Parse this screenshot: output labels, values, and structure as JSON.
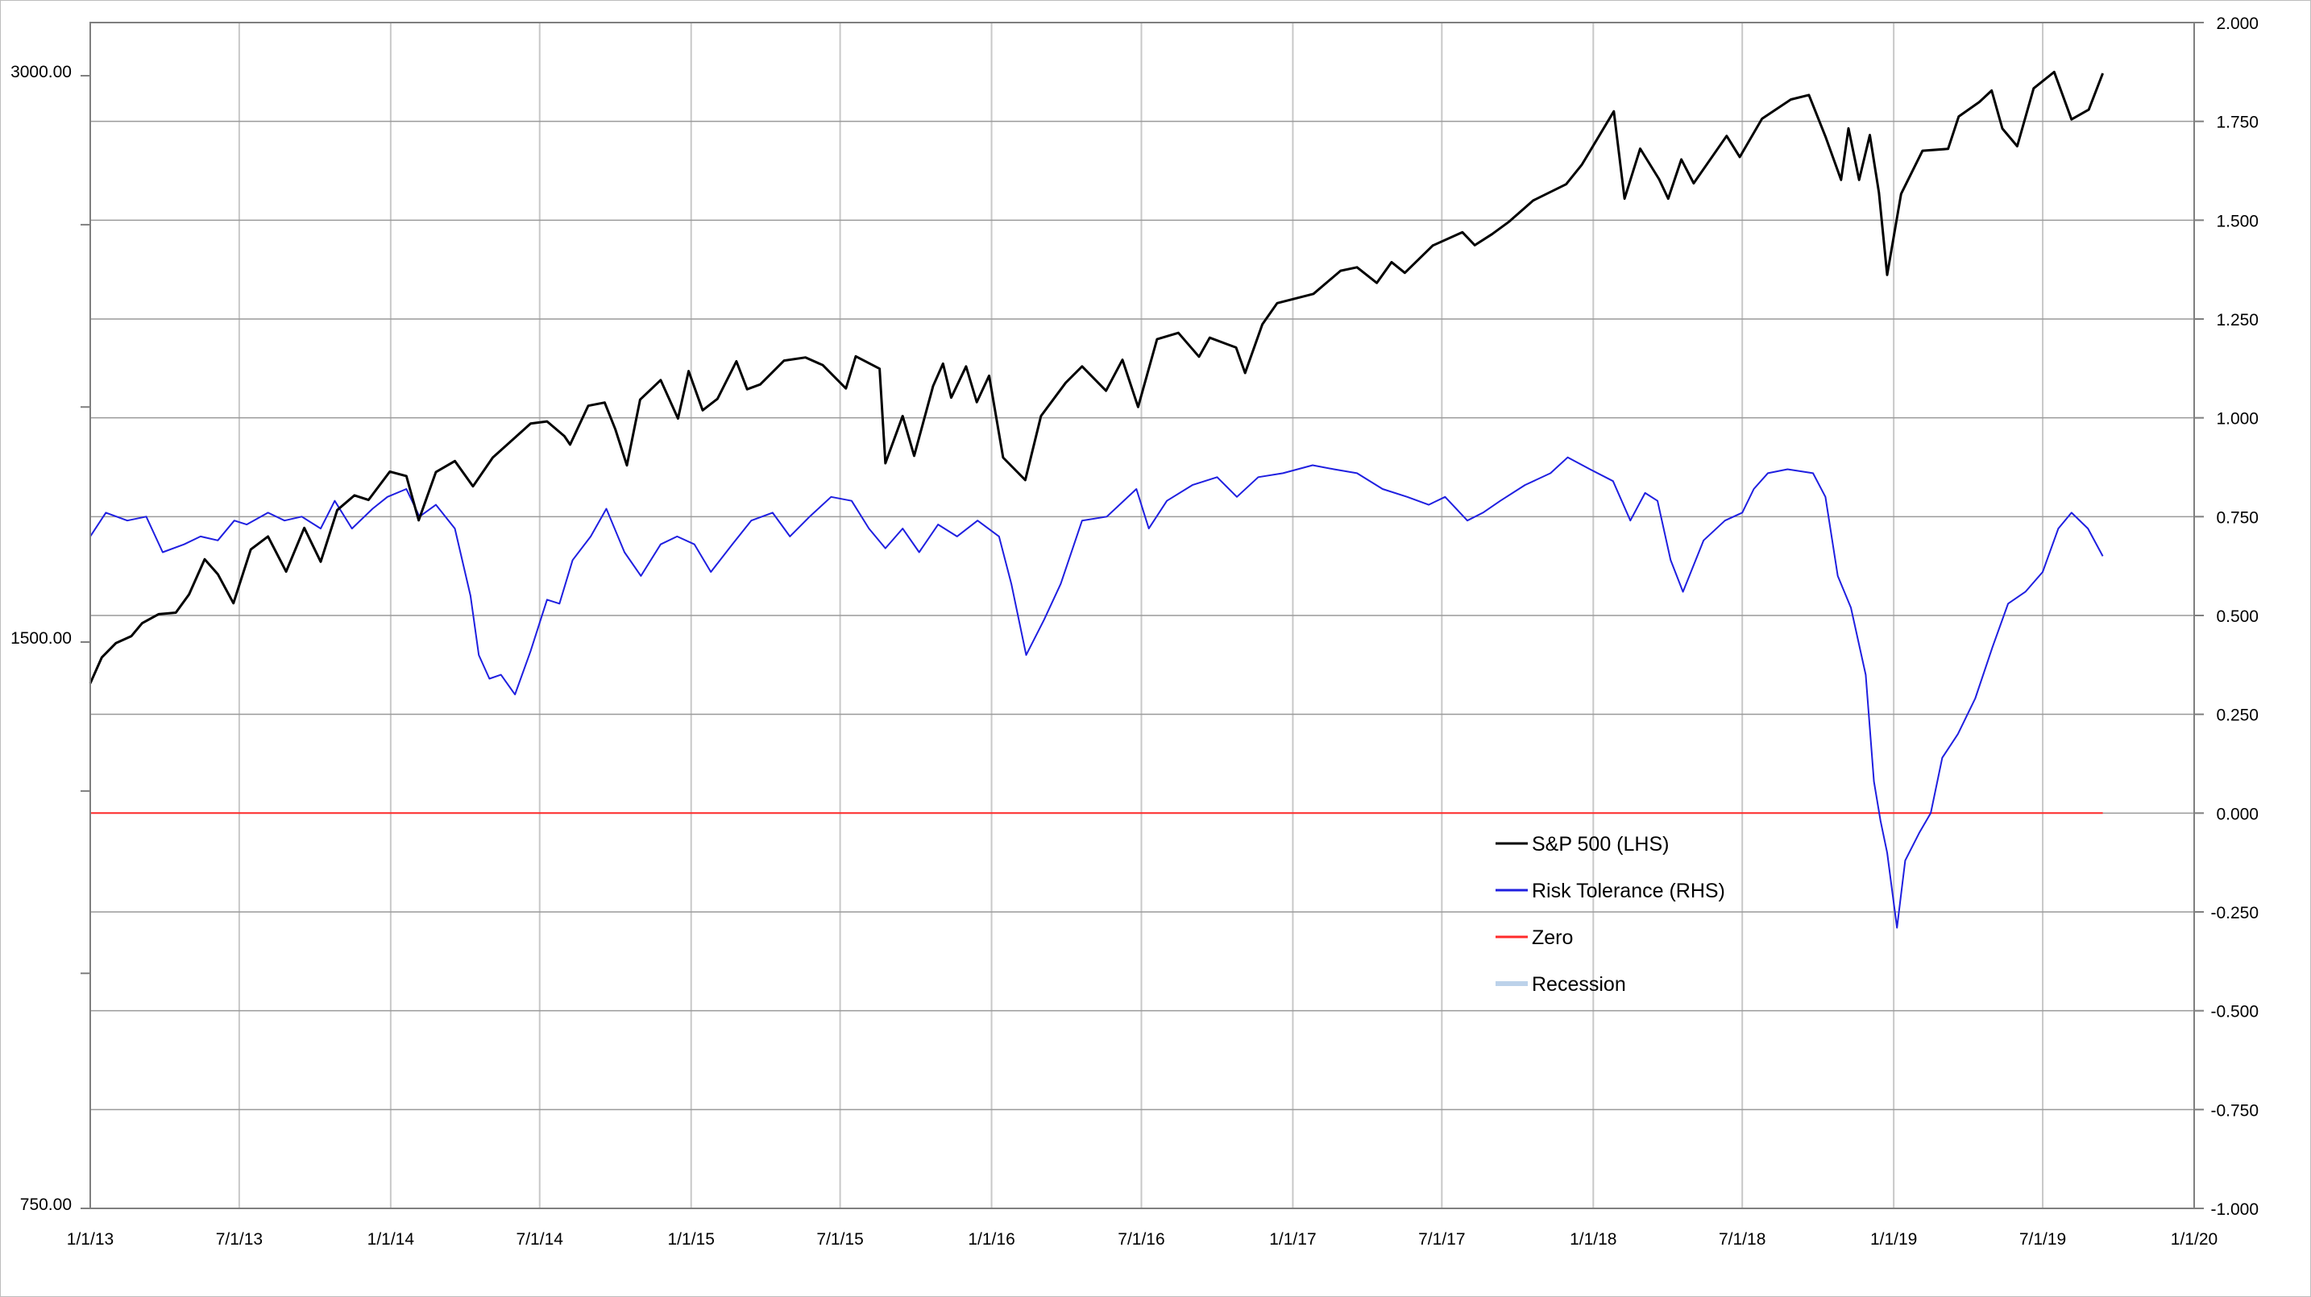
{
  "chart_data": {
    "type": "line",
    "title": "",
    "x_axis": {
      "type": "date",
      "range": [
        "2013-01-01",
        "2020-01-01"
      ],
      "ticks": [
        "2013-01-01",
        "2013-07-01",
        "2014-01-01",
        "2014-07-01",
        "2015-01-01",
        "2015-07-01",
        "2016-01-01",
        "2016-07-01",
        "2017-01-01",
        "2017-07-01",
        "2018-01-01",
        "2018-07-01",
        "2019-01-01",
        "2019-07-01",
        "2020-01-01"
      ],
      "tick_labels": [
        "1/1/13",
        "7/1/13",
        "1/1/14",
        "7/1/14",
        "1/1/15",
        "7/1/15",
        "1/1/16",
        "7/1/16",
        "1/1/17",
        "7/1/17",
        "1/1/18",
        "7/1/18",
        "1/1/19",
        "7/1/19",
        "1/1/20"
      ]
    },
    "y_left": {
      "scale": "log",
      "range": [
        750,
        3200
      ],
      "ticks": [
        750,
        1500,
        3000
      ],
      "tick_labels": [
        "750.00",
        "1500.00",
        "3000.00"
      ],
      "minor_ticks": [
        1000,
        1250,
        2000,
        2500
      ]
    },
    "y_right": {
      "scale": "linear",
      "range": [
        -1.0,
        2.0
      ],
      "ticks": [
        -1.0,
        -0.75,
        -0.5,
        -0.25,
        0.0,
        0.25,
        0.5,
        0.75,
        1.0,
        1.25,
        1.5,
        1.75,
        2.0
      ],
      "tick_labels": [
        "-1.000",
        "-0.750",
        "-0.500",
        "-0.250",
        "0.000",
        "0.250",
        "0.500",
        "0.750",
        "1.000",
        "1.250",
        "1.500",
        "1.750",
        "2.000"
      ]
    },
    "grid": true,
    "legend_position": "bottom-center",
    "legend": [
      {
        "name": "S&P 500 (LHS)",
        "color": "#000000"
      },
      {
        "name": "Risk Tolerance (RHS)",
        "color": "#1f1fe0"
      },
      {
        "name": "Zero",
        "color": "#ff2a2a"
      },
      {
        "name": "Recession",
        "color": "#bcd2ea"
      }
    ],
    "series": [
      {
        "name": "S&P 500 (LHS)",
        "axis": "left",
        "color": "#000000",
        "points": [
          [
            "2013-01-01",
            1426
          ],
          [
            "2013-01-15",
            1472
          ],
          [
            "2013-02-01",
            1498
          ],
          [
            "2013-02-20",
            1511
          ],
          [
            "2013-03-05",
            1535
          ],
          [
            "2013-03-25",
            1552
          ],
          [
            "2013-04-15",
            1555
          ],
          [
            "2013-05-01",
            1590
          ],
          [
            "2013-05-20",
            1660
          ],
          [
            "2013-06-05",
            1630
          ],
          [
            "2013-06-24",
            1573
          ],
          [
            "2013-07-15",
            1680
          ],
          [
            "2013-08-05",
            1707
          ],
          [
            "2013-08-27",
            1635
          ],
          [
            "2013-09-18",
            1725
          ],
          [
            "2013-10-08",
            1655
          ],
          [
            "2013-10-28",
            1763
          ],
          [
            "2013-11-18",
            1795
          ],
          [
            "2013-12-05",
            1785
          ],
          [
            "2013-12-31",
            1848
          ],
          [
            "2014-01-20",
            1838
          ],
          [
            "2014-02-04",
            1741
          ],
          [
            "2014-02-25",
            1847
          ],
          [
            "2014-03-20",
            1872
          ],
          [
            "2014-04-11",
            1815
          ],
          [
            "2014-05-05",
            1880
          ],
          [
            "2014-05-30",
            1923
          ],
          [
            "2014-06-20",
            1960
          ],
          [
            "2014-07-10",
            1965
          ],
          [
            "2014-07-31",
            1930
          ],
          [
            "2014-08-07",
            1910
          ],
          [
            "2014-08-29",
            2003
          ],
          [
            "2014-09-18",
            2011
          ],
          [
            "2014-10-01",
            1946
          ],
          [
            "2014-10-15",
            1862
          ],
          [
            "2014-10-31",
            2018
          ],
          [
            "2014-11-25",
            2067
          ],
          [
            "2014-12-16",
            1972
          ],
          [
            "2014-12-29",
            2090
          ],
          [
            "2015-01-15",
            1992
          ],
          [
            "2015-02-02",
            2020
          ],
          [
            "2015-02-25",
            2115
          ],
          [
            "2015-03-10",
            2044
          ],
          [
            "2015-03-26",
            2056
          ],
          [
            "2015-04-24",
            2117
          ],
          [
            "2015-05-20",
            2125
          ],
          [
            "2015-06-10",
            2105
          ],
          [
            "2015-07-08",
            2046
          ],
          [
            "2015-07-20",
            2128
          ],
          [
            "2015-08-18",
            2096
          ],
          [
            "2015-08-25",
            1867
          ],
          [
            "2015-09-15",
            1978
          ],
          [
            "2015-09-29",
            1884
          ],
          [
            "2015-10-22",
            2052
          ],
          [
            "2015-11-03",
            2109
          ],
          [
            "2015-11-13",
            2023
          ],
          [
            "2015-12-01",
            2102
          ],
          [
            "2015-12-14",
            2012
          ],
          [
            "2015-12-29",
            2078
          ],
          [
            "2016-01-15",
            1880
          ],
          [
            "2016-02-11",
            1829
          ],
          [
            "2016-03-01",
            1978
          ],
          [
            "2016-03-31",
            2060
          ],
          [
            "2016-04-20",
            2102
          ],
          [
            "2016-05-19",
            2040
          ],
          [
            "2016-06-08",
            2119
          ],
          [
            "2016-06-27",
            2000
          ],
          [
            "2016-07-20",
            2173
          ],
          [
            "2016-08-15",
            2190
          ],
          [
            "2016-09-09",
            2127
          ],
          [
            "2016-09-22",
            2177
          ],
          [
            "2016-10-24",
            2151
          ],
          [
            "2016-11-04",
            2085
          ],
          [
            "2016-11-25",
            2213
          ],
          [
            "2016-12-13",
            2271
          ],
          [
            "2017-01-26",
            2297
          ],
          [
            "2017-02-28",
            2363
          ],
          [
            "2017-03-20",
            2373
          ],
          [
            "2017-04-13",
            2328
          ],
          [
            "2017-05-01",
            2388
          ],
          [
            "2017-05-17",
            2357
          ],
          [
            "2017-06-20",
            2437
          ],
          [
            "2017-07-26",
            2477
          ],
          [
            "2017-08-10",
            2438
          ],
          [
            "2017-08-31",
            2471
          ],
          [
            "2017-09-20",
            2508
          ],
          [
            "2017-10-20",
            2575
          ],
          [
            "2017-11-29",
            2627
          ],
          [
            "2017-12-18",
            2690
          ],
          [
            "2018-01-26",
            2872
          ],
          [
            "2018-02-08",
            2581
          ],
          [
            "2018-02-27",
            2744
          ],
          [
            "2018-03-22",
            2643
          ],
          [
            "2018-04-02",
            2581
          ],
          [
            "2018-04-18",
            2708
          ],
          [
            "2018-05-03",
            2630
          ],
          [
            "2018-06-12",
            2787
          ],
          [
            "2018-06-28",
            2716
          ],
          [
            "2018-07-25",
            2846
          ],
          [
            "2018-08-29",
            2914
          ],
          [
            "2018-09-20",
            2930
          ],
          [
            "2018-10-10",
            2785
          ],
          [
            "2018-10-29",
            2641
          ],
          [
            "2018-11-07",
            2813
          ],
          [
            "2018-11-20",
            2641
          ],
          [
            "2018-12-03",
            2790
          ],
          [
            "2018-12-14",
            2600
          ],
          [
            "2018-12-24",
            2351
          ],
          [
            "2019-01-10",
            2596
          ],
          [
            "2019-02-05",
            2737
          ],
          [
            "2019-03-08",
            2743
          ],
          [
            "2019-03-21",
            2854
          ],
          [
            "2019-04-15",
            2905
          ],
          [
            "2019-04-30",
            2946
          ],
          [
            "2019-05-13",
            2812
          ],
          [
            "2019-05-31",
            2752
          ],
          [
            "2019-06-20",
            2954
          ],
          [
            "2019-07-15",
            3014
          ],
          [
            "2019-08-05",
            2844
          ],
          [
            "2019-08-26",
            2878
          ],
          [
            "2019-09-12",
            3009
          ]
        ]
      },
      {
        "name": "Risk Tolerance (RHS)",
        "axis": "right",
        "color": "#1f1fe0",
        "points": [
          [
            "2013-01-01",
            0.7
          ],
          [
            "2013-01-20",
            0.76
          ],
          [
            "2013-02-15",
            0.74
          ],
          [
            "2013-03-10",
            0.75
          ],
          [
            "2013-03-30",
            0.66
          ],
          [
            "2013-04-25",
            0.68
          ],
          [
            "2013-05-15",
            0.7
          ],
          [
            "2013-06-05",
            0.69
          ],
          [
            "2013-06-25",
            0.74
          ],
          [
            "2013-07-10",
            0.73
          ],
          [
            "2013-08-05",
            0.76
          ],
          [
            "2013-08-25",
            0.74
          ],
          [
            "2013-09-15",
            0.75
          ],
          [
            "2013-10-08",
            0.72
          ],
          [
            "2013-10-25",
            0.79
          ],
          [
            "2013-11-15",
            0.72
          ],
          [
            "2013-12-10",
            0.77
          ],
          [
            "2013-12-28",
            0.8
          ],
          [
            "2014-01-20",
            0.82
          ],
          [
            "2014-02-05",
            0.75
          ],
          [
            "2014-02-25",
            0.78
          ],
          [
            "2014-03-20",
            0.72
          ],
          [
            "2014-04-08",
            0.55
          ],
          [
            "2014-04-18",
            0.4
          ],
          [
            "2014-05-01",
            0.34
          ],
          [
            "2014-05-15",
            0.35
          ],
          [
            "2014-06-01",
            0.3
          ],
          [
            "2014-06-20",
            0.41
          ],
          [
            "2014-07-10",
            0.54
          ],
          [
            "2014-07-25",
            0.53
          ],
          [
            "2014-08-10",
            0.64
          ],
          [
            "2014-09-01",
            0.7
          ],
          [
            "2014-09-20",
            0.77
          ],
          [
            "2014-10-12",
            0.66
          ],
          [
            "2014-11-01",
            0.6
          ],
          [
            "2014-11-25",
            0.68
          ],
          [
            "2014-12-15",
            0.7
          ],
          [
            "2015-01-05",
            0.68
          ],
          [
            "2015-01-25",
            0.61
          ],
          [
            "2015-02-20",
            0.68
          ],
          [
            "2015-03-15",
            0.74
          ],
          [
            "2015-04-10",
            0.76
          ],
          [
            "2015-05-01",
            0.7
          ],
          [
            "2015-05-25",
            0.75
          ],
          [
            "2015-06-20",
            0.8
          ],
          [
            "2015-07-15",
            0.79
          ],
          [
            "2015-08-05",
            0.72
          ],
          [
            "2015-08-25",
            0.67
          ],
          [
            "2015-09-15",
            0.72
          ],
          [
            "2015-10-05",
            0.66
          ],
          [
            "2015-10-28",
            0.73
          ],
          [
            "2015-11-20",
            0.7
          ],
          [
            "2015-12-15",
            0.74
          ],
          [
            "2016-01-10",
            0.7
          ],
          [
            "2016-01-25",
            0.58
          ],
          [
            "2016-02-12",
            0.4
          ],
          [
            "2016-03-05",
            0.49
          ],
          [
            "2016-03-25",
            0.58
          ],
          [
            "2016-04-20",
            0.74
          ],
          [
            "2016-05-20",
            0.75
          ],
          [
            "2016-06-25",
            0.82
          ],
          [
            "2016-07-10",
            0.72
          ],
          [
            "2016-08-01",
            0.79
          ],
          [
            "2016-09-01",
            0.83
          ],
          [
            "2016-10-01",
            0.85
          ],
          [
            "2016-10-25",
            0.8
          ],
          [
            "2016-11-20",
            0.85
          ],
          [
            "2016-12-20",
            0.86
          ],
          [
            "2017-01-25",
            0.88
          ],
          [
            "2017-02-20",
            0.87
          ],
          [
            "2017-03-20",
            0.86
          ],
          [
            "2017-04-20",
            0.82
          ],
          [
            "2017-05-20",
            0.8
          ],
          [
            "2017-06-15",
            0.78
          ],
          [
            "2017-07-05",
            0.8
          ],
          [
            "2017-08-01",
            0.74
          ],
          [
            "2017-08-20",
            0.76
          ],
          [
            "2017-09-10",
            0.79
          ],
          [
            "2017-10-10",
            0.83
          ],
          [
            "2017-11-10",
            0.86
          ],
          [
            "2017-12-01",
            0.9
          ],
          [
            "2017-12-28",
            0.87
          ],
          [
            "2018-01-25",
            0.84
          ],
          [
            "2018-02-15",
            0.74
          ],
          [
            "2018-03-05",
            0.81
          ],
          [
            "2018-03-20",
            0.79
          ],
          [
            "2018-04-05",
            0.64
          ],
          [
            "2018-04-20",
            0.56
          ],
          [
            "2018-05-15",
            0.69
          ],
          [
            "2018-06-10",
            0.74
          ],
          [
            "2018-07-01",
            0.76
          ],
          [
            "2018-07-15",
            0.82
          ],
          [
            "2018-08-01",
            0.86
          ],
          [
            "2018-08-25",
            0.87
          ],
          [
            "2018-09-25",
            0.86
          ],
          [
            "2018-10-10",
            0.8
          ],
          [
            "2018-10-25",
            0.6
          ],
          [
            "2018-11-10",
            0.52
          ],
          [
            "2018-11-28",
            0.35
          ],
          [
            "2018-12-08",
            0.08
          ],
          [
            "2018-12-16",
            -0.02
          ],
          [
            "2018-12-24",
            -0.1
          ],
          [
            "2019-01-05",
            -0.29
          ],
          [
            "2019-01-15",
            -0.12
          ],
          [
            "2019-02-01",
            -0.05
          ],
          [
            "2019-02-15",
            0.0
          ],
          [
            "2019-03-01",
            0.14
          ],
          [
            "2019-03-20",
            0.2
          ],
          [
            "2019-04-10",
            0.29
          ],
          [
            "2019-05-01",
            0.42
          ],
          [
            "2019-05-20",
            0.53
          ],
          [
            "2019-06-10",
            0.56
          ],
          [
            "2019-07-01",
            0.61
          ],
          [
            "2019-07-20",
            0.72
          ],
          [
            "2019-08-05",
            0.76
          ],
          [
            "2019-08-25",
            0.72
          ],
          [
            "2019-09-12",
            0.65
          ]
        ]
      },
      {
        "name": "Zero",
        "axis": "right",
        "color": "#ff2a2a",
        "points": [
          [
            "2013-01-01",
            0.0
          ],
          [
            "2019-09-12",
            0.0
          ]
        ]
      }
    ]
  }
}
